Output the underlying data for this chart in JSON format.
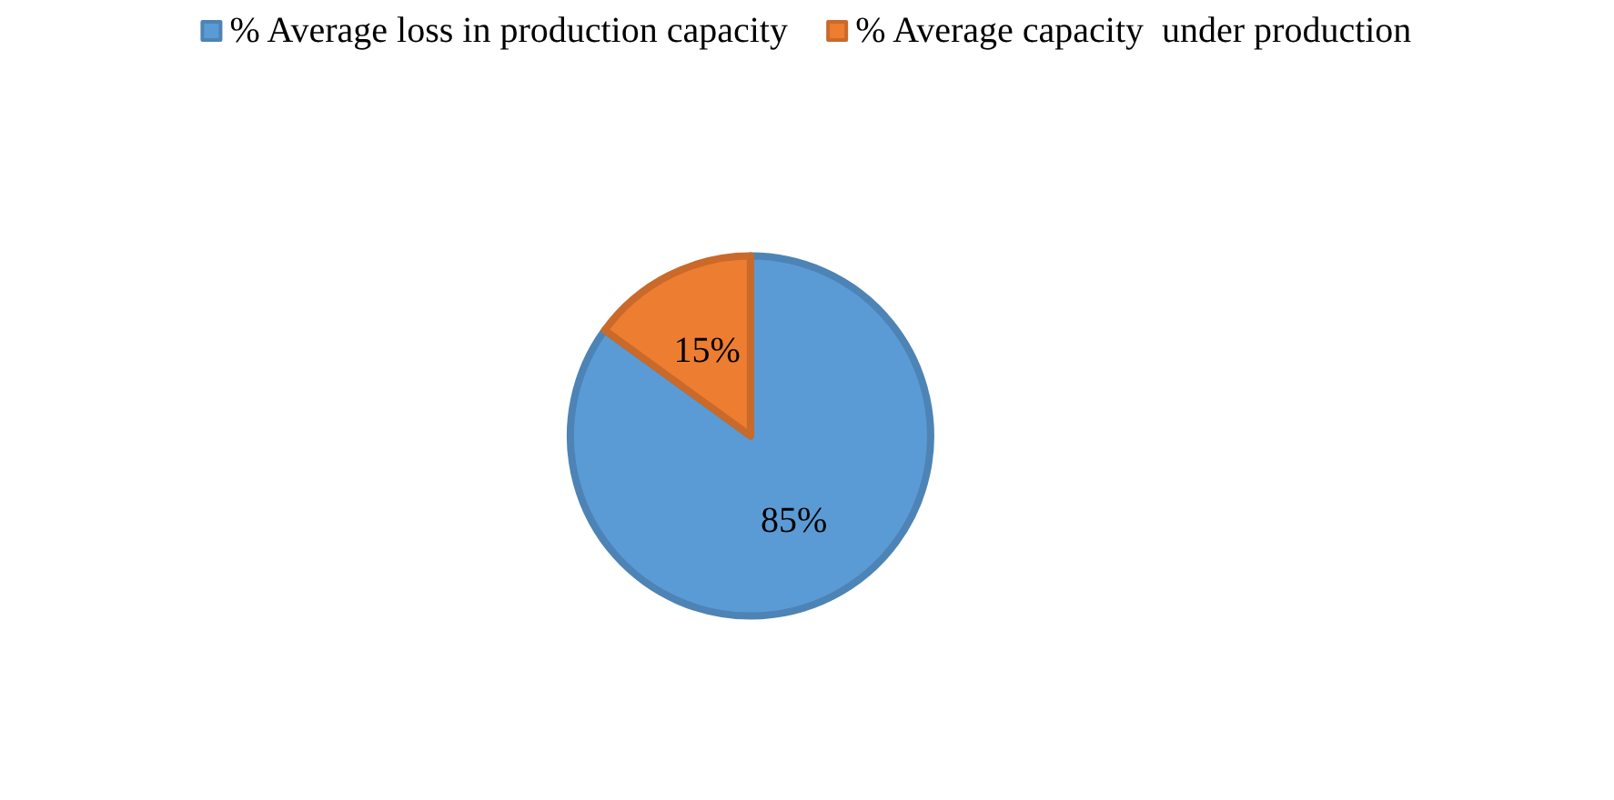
{
  "chart_data": {
    "type": "pie",
    "categories": [
      "% Average loss in production capacity",
      "% Average capacity  under production"
    ],
    "values": [
      85,
      15
    ],
    "colors": [
      "#5b9bd5",
      "#ed7d31"
    ],
    "value_labels": [
      "85%",
      "15%"
    ],
    "legend": "top"
  }
}
